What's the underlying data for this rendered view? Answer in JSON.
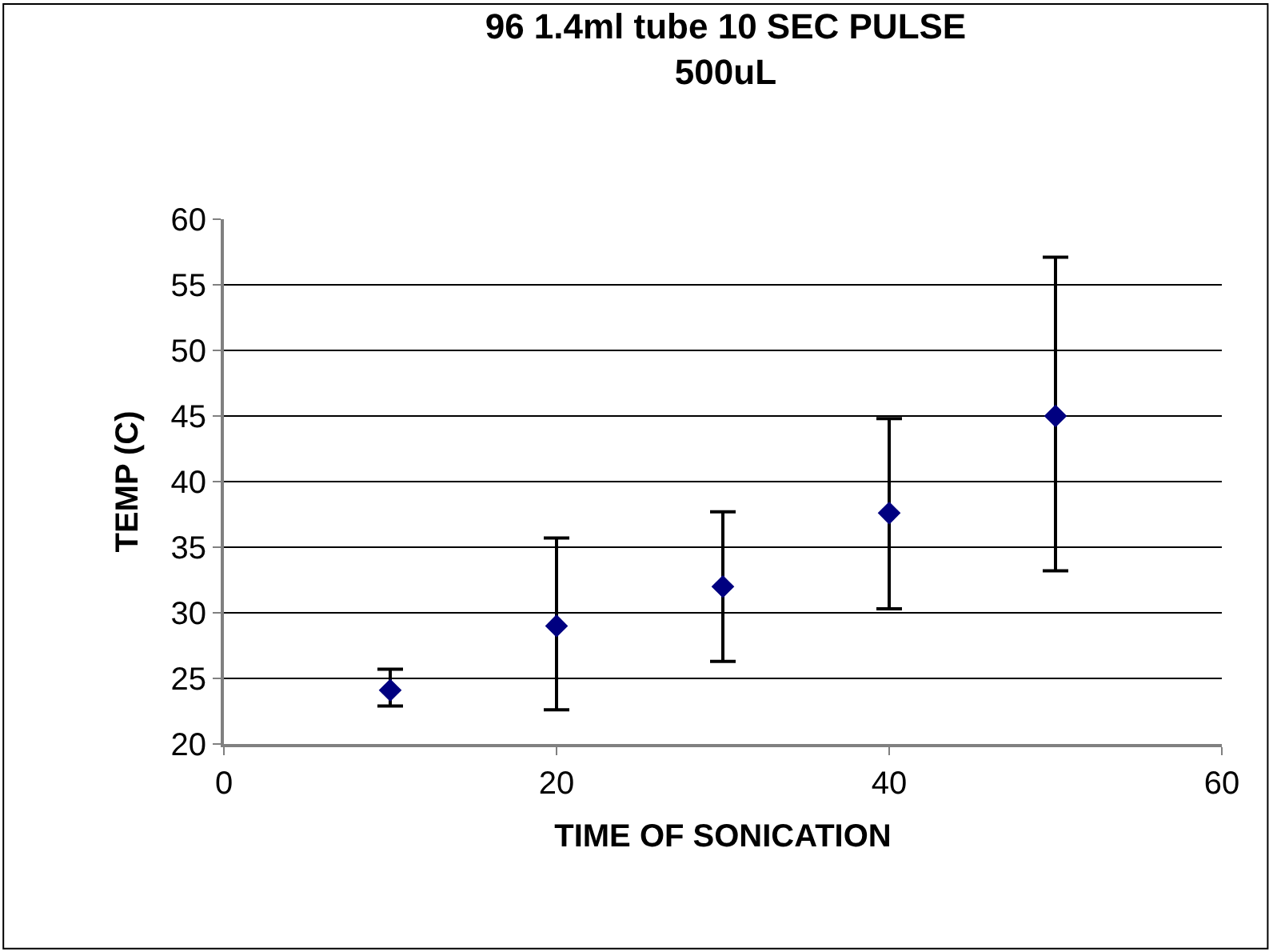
{
  "chart_data": {
    "type": "scatter",
    "title": "96 1.4ml tube 10 SEC PULSE\n500uL",
    "xlabel": "TIME OF SONICATION",
    "ylabel": "TEMP (C)",
    "x": [
      10,
      20,
      30,
      40,
      50
    ],
    "series": [
      {
        "color": "#000080",
        "values": [
          24.1,
          29.0,
          32.0,
          37.6,
          45.0
        ],
        "errors": [
          [
            22.9,
            25.7
          ],
          [
            22.6,
            35.7
          ],
          [
            26.3,
            37.7
          ],
          [
            30.3,
            44.8
          ],
          [
            33.2,
            57.1
          ]
        ]
      }
    ],
    "marker": "diamond",
    "xlim": [
      0,
      60
    ],
    "xticks": [
      0,
      20,
      40,
      60
    ],
    "ylim": [
      20,
      60
    ],
    "yticks": [
      20,
      25,
      30,
      35,
      40,
      45,
      50,
      55,
      60
    ],
    "grid": "y",
    "legend": false
  }
}
